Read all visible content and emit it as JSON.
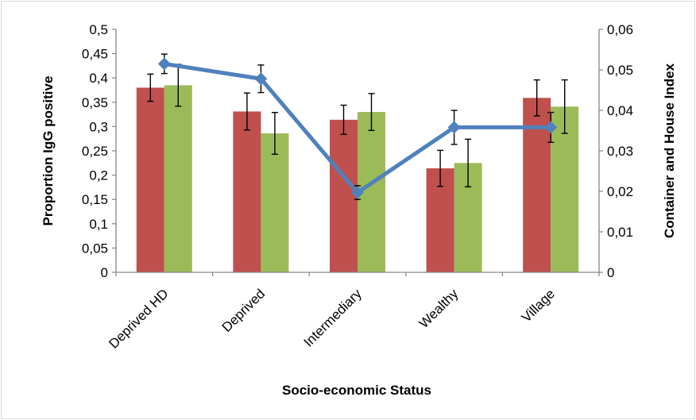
{
  "colors": {
    "bar_series_1": "#c0504d",
    "bar_series_2": "#9bbb59",
    "line_series": "#4f81bd",
    "axis": "#868686",
    "error_bar": "#000000"
  },
  "chart_data": {
    "type": "bar",
    "title": "",
    "xlabel": "Socio-economic Status",
    "ylabel": "Proportion IgG positive",
    "y2label": "Container and House Index",
    "categories": [
      "Deprived HD",
      "Deprived",
      "Intermediary",
      "Wealthy",
      "Village"
    ],
    "ylim": [
      0,
      0.5
    ],
    "y2lim": [
      0,
      0.06
    ],
    "y_ticks": [
      "0",
      "0,05",
      "0,1",
      "0,15",
      "0,2",
      "0,25",
      "0,3",
      "0,35",
      "0,4",
      "0,45",
      "0,5"
    ],
    "y2_ticks": [
      "0",
      "0,01",
      "0,02",
      "0,03",
      "0,04",
      "0,05",
      "0,06"
    ],
    "grid": false,
    "legend": "none",
    "series": [
      {
        "type": "bar",
        "axis": "left",
        "color": "#c0504d",
        "values": [
          0.38,
          0.331,
          0.314,
          0.214,
          0.359
        ],
        "error": [
          0.028,
          0.038,
          0.03,
          0.037,
          0.037
        ]
      },
      {
        "type": "bar",
        "axis": "left",
        "color": "#9bbb59",
        "values": [
          0.385,
          0.286,
          0.33,
          0.225,
          0.341
        ],
        "error": [
          0.043,
          0.043,
          0.038,
          0.049,
          0.055
        ]
      },
      {
        "type": "line",
        "axis": "right",
        "color": "#4f81bd",
        "marker": "diamond",
        "values": [
          0.0515,
          0.0478,
          0.0197,
          0.0358,
          0.0358
        ],
        "error": [
          0.0024,
          0.0034,
          0.0017,
          0.0042,
          0.0037
        ]
      }
    ]
  }
}
